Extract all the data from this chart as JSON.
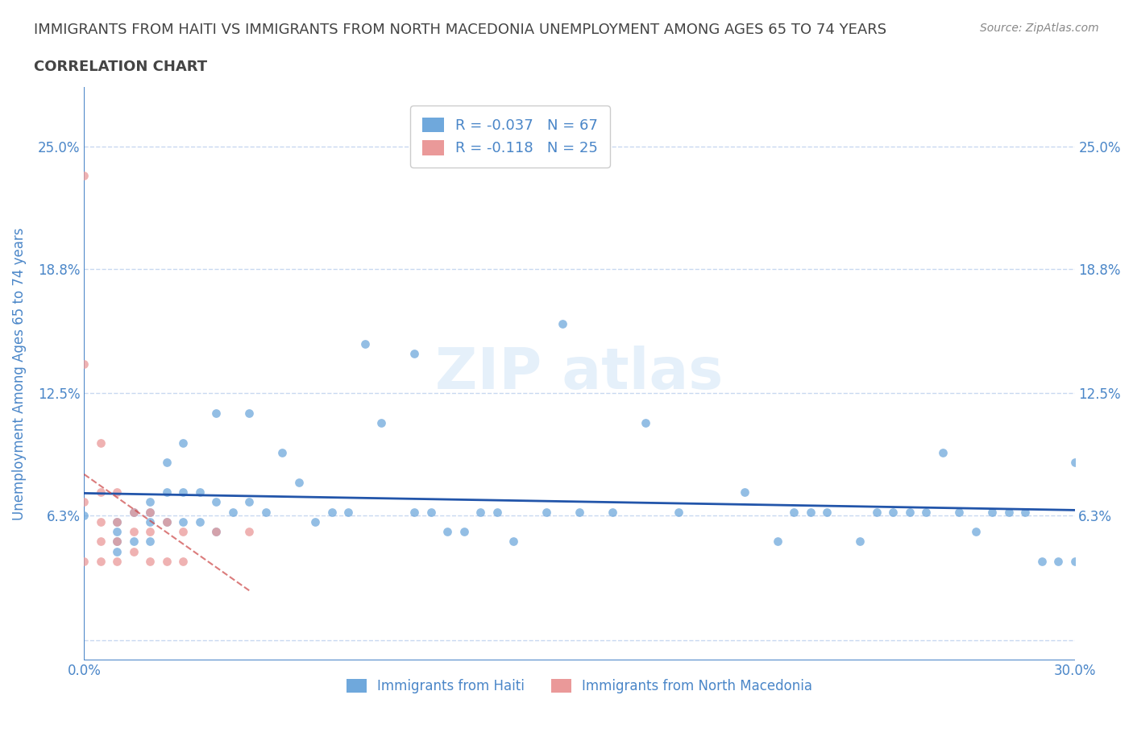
{
  "title_line1": "IMMIGRANTS FROM HAITI VS IMMIGRANTS FROM NORTH MACEDONIA UNEMPLOYMENT AMONG AGES 65 TO 74 YEARS",
  "title_line2": "CORRELATION CHART",
  "source_text": "Source: ZipAtlas.com",
  "ylabel": "Unemployment Among Ages 65 to 74 years",
  "xlim": [
    0.0,
    0.3
  ],
  "ylim": [
    -0.01,
    0.28
  ],
  "yticks": [
    0.0,
    0.063,
    0.125,
    0.188,
    0.25
  ],
  "ytick_labels": [
    "",
    "6.3%",
    "12.5%",
    "18.8%",
    "25.0%"
  ],
  "xticks": [
    0.0,
    0.05,
    0.1,
    0.15,
    0.2,
    0.25,
    0.3
  ],
  "xtick_labels": [
    "0.0%",
    "",
    "",
    "",
    "",
    "",
    "30.0%"
  ],
  "haiti_R": -0.037,
  "haiti_N": 67,
  "macedonia_R": -0.118,
  "macedonia_N": 25,
  "haiti_color": "#6fa8dc",
  "macedonia_color": "#ea9999",
  "trend_haiti_color": "#2255aa",
  "trend_macedonia_color": "#cc4444",
  "axis_color": "#4a86c8",
  "grid_color": "#c8d8f0",
  "title_color": "#444444",
  "source_color": "#888888",
  "haiti_x": [
    0.0,
    0.01,
    0.01,
    0.01,
    0.01,
    0.015,
    0.015,
    0.02,
    0.02,
    0.02,
    0.02,
    0.025,
    0.025,
    0.025,
    0.03,
    0.03,
    0.03,
    0.035,
    0.035,
    0.04,
    0.04,
    0.04,
    0.045,
    0.05,
    0.05,
    0.055,
    0.06,
    0.065,
    0.07,
    0.075,
    0.08,
    0.085,
    0.09,
    0.1,
    0.1,
    0.105,
    0.11,
    0.115,
    0.12,
    0.125,
    0.13,
    0.14,
    0.145,
    0.15,
    0.16,
    0.17,
    0.18,
    0.2,
    0.21,
    0.215,
    0.22,
    0.225,
    0.235,
    0.24,
    0.245,
    0.25,
    0.255,
    0.26,
    0.265,
    0.27,
    0.275,
    0.28,
    0.285,
    0.29,
    0.295,
    0.3,
    0.3
  ],
  "haiti_y": [
    0.063,
    0.06,
    0.055,
    0.05,
    0.045,
    0.065,
    0.05,
    0.07,
    0.065,
    0.06,
    0.05,
    0.09,
    0.075,
    0.06,
    0.1,
    0.075,
    0.06,
    0.075,
    0.06,
    0.115,
    0.07,
    0.055,
    0.065,
    0.115,
    0.07,
    0.065,
    0.095,
    0.08,
    0.06,
    0.065,
    0.065,
    0.15,
    0.11,
    0.145,
    0.065,
    0.065,
    0.055,
    0.055,
    0.065,
    0.065,
    0.05,
    0.065,
    0.16,
    0.065,
    0.065,
    0.11,
    0.065,
    0.075,
    0.05,
    0.065,
    0.065,
    0.065,
    0.05,
    0.065,
    0.065,
    0.065,
    0.065,
    0.095,
    0.065,
    0.055,
    0.065,
    0.065,
    0.065,
    0.04,
    0.04,
    0.09,
    0.04
  ],
  "macedonia_x": [
    0.0,
    0.0,
    0.0,
    0.0,
    0.005,
    0.005,
    0.005,
    0.005,
    0.005,
    0.01,
    0.01,
    0.01,
    0.01,
    0.015,
    0.015,
    0.015,
    0.02,
    0.02,
    0.02,
    0.025,
    0.025,
    0.03,
    0.03,
    0.04,
    0.05
  ],
  "macedonia_y": [
    0.235,
    0.14,
    0.07,
    0.04,
    0.1,
    0.075,
    0.06,
    0.05,
    0.04,
    0.075,
    0.06,
    0.05,
    0.04,
    0.065,
    0.055,
    0.045,
    0.065,
    0.055,
    0.04,
    0.06,
    0.04,
    0.055,
    0.04,
    0.055,
    0.055
  ]
}
